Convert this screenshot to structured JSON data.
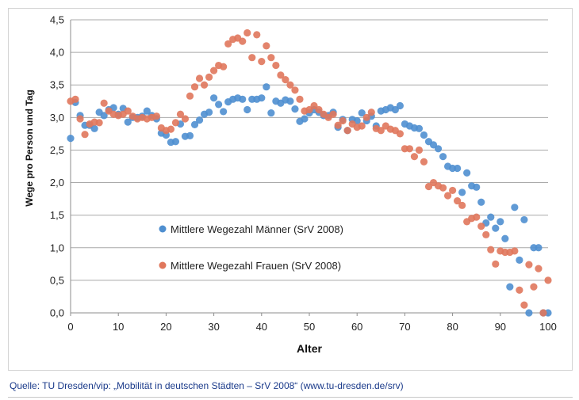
{
  "source": "Quelle: TU Dresden/vip: „Mobilität in deutschen Städten – SrV 2008“ (www.tu-dresden.de/srv)",
  "chart_data": {
    "type": "scatter",
    "xlabel": "Alter",
    "ylabel": "Wege pro Person und Tag",
    "xlim": [
      0,
      100
    ],
    "ylim": [
      0,
      4.5
    ],
    "x_ticks": [
      "0",
      "10",
      "20",
      "30",
      "40",
      "50",
      "60",
      "70",
      "80",
      "90",
      "100"
    ],
    "y_ticks": [
      "0,0",
      "0,5",
      "1,0",
      "1,5",
      "2,0",
      "2,5",
      "3,0",
      "3,5",
      "4,0",
      "4,5"
    ],
    "grid": "horizontal",
    "legend": "center-left",
    "series": [
      {
        "name": "Mittlere Wegezahl Männer (SrV 2008)",
        "color": "#4f8fd0",
        "x": [
          0,
          1,
          2,
          3,
          4,
          5,
          6,
          7,
          8,
          9,
          10,
          11,
          12,
          13,
          14,
          15,
          16,
          17,
          18,
          19,
          20,
          21,
          22,
          23,
          24,
          25,
          26,
          27,
          28,
          29,
          30,
          31,
          32,
          33,
          34,
          35,
          36,
          37,
          38,
          39,
          40,
          41,
          42,
          43,
          44,
          45,
          46,
          47,
          48,
          49,
          50,
          51,
          52,
          53,
          54,
          55,
          56,
          57,
          58,
          59,
          60,
          61,
          62,
          63,
          64,
          65,
          66,
          67,
          68,
          69,
          70,
          71,
          72,
          73,
          74,
          75,
          76,
          77,
          78,
          79,
          80,
          81,
          82,
          83,
          84,
          85,
          86,
          87,
          88,
          89,
          90,
          91,
          92,
          93,
          94,
          95,
          96,
          97,
          98,
          99,
          100
        ],
        "y": [
          2.68,
          3.23,
          3.03,
          2.88,
          2.88,
          2.83,
          3.08,
          3.03,
          3.12,
          3.15,
          3.05,
          3.14,
          2.93,
          3.0,
          3.0,
          3.02,
          3.1,
          3.03,
          2.98,
          2.76,
          2.73,
          2.62,
          2.63,
          2.9,
          2.71,
          2.72,
          2.89,
          2.96,
          3.05,
          3.08,
          3.3,
          3.2,
          3.09,
          3.24,
          3.28,
          3.3,
          3.28,
          3.12,
          3.28,
          3.28,
          3.3,
          3.47,
          3.07,
          3.25,
          3.22,
          3.27,
          3.25,
          3.13,
          2.94,
          2.98,
          3.07,
          3.12,
          3.08,
          3.03,
          3.03,
          3.08,
          2.85,
          2.97,
          2.8,
          2.97,
          2.95,
          3.07,
          2.95,
          3.02,
          2.87,
          3.1,
          3.12,
          3.15,
          3.12,
          3.18,
          2.9,
          2.87,
          2.84,
          2.83,
          2.73,
          2.63,
          2.58,
          2.52,
          2.4,
          2.25,
          2.22,
          2.22,
          1.85,
          2.15,
          1.95,
          1.93,
          1.7,
          1.38,
          1.47,
          1.3,
          1.4,
          1.14,
          0.4,
          1.62,
          0.81,
          1.43,
          0.0,
          1.0,
          1.0,
          0.0,
          0.0
        ]
      },
      {
        "name": "Mittlere Wegezahl Frauen (SrV 2008)",
        "color": "#e0775c",
        "x": [
          0,
          1,
          2,
          3,
          4,
          5,
          6,
          7,
          8,
          9,
          10,
          11,
          12,
          13,
          14,
          15,
          16,
          17,
          18,
          19,
          20,
          21,
          22,
          23,
          24,
          25,
          26,
          27,
          28,
          29,
          30,
          31,
          32,
          33,
          34,
          35,
          36,
          37,
          38,
          39,
          40,
          41,
          42,
          43,
          44,
          45,
          46,
          47,
          48,
          49,
          50,
          51,
          52,
          53,
          54,
          55,
          56,
          57,
          58,
          59,
          60,
          61,
          62,
          63,
          64,
          65,
          66,
          67,
          68,
          69,
          70,
          71,
          72,
          73,
          74,
          75,
          76,
          77,
          78,
          79,
          80,
          81,
          82,
          83,
          84,
          85,
          86,
          87,
          88,
          89,
          90,
          91,
          92,
          93,
          94,
          95,
          96,
          97,
          98,
          99,
          100
        ],
        "y": [
          3.25,
          3.28,
          2.98,
          2.74,
          2.9,
          2.93,
          2.92,
          3.22,
          3.1,
          3.05,
          3.03,
          3.05,
          3.1,
          3.02,
          2.98,
          3.0,
          2.98,
          3.0,
          3.02,
          2.84,
          2.8,
          2.82,
          2.92,
          3.05,
          2.98,
          3.33,
          3.47,
          3.6,
          3.5,
          3.62,
          3.72,
          3.8,
          3.78,
          4.13,
          4.2,
          4.22,
          4.17,
          4.3,
          3.92,
          4.27,
          3.86,
          4.1,
          3.92,
          3.8,
          3.65,
          3.58,
          3.5,
          3.42,
          3.28,
          3.1,
          3.12,
          3.18,
          3.12,
          3.05,
          3.0,
          3.05,
          2.88,
          2.95,
          2.8,
          2.9,
          2.85,
          2.87,
          3.0,
          3.08,
          2.83,
          2.8,
          2.87,
          2.82,
          2.8,
          2.75,
          2.52,
          2.52,
          2.4,
          2.5,
          2.32,
          1.94,
          2.0,
          1.95,
          1.92,
          1.8,
          1.88,
          1.72,
          1.65,
          1.4,
          1.45,
          1.47,
          1.33,
          1.2,
          0.97,
          0.75,
          0.95,
          0.93,
          0.93,
          0.95,
          0.35,
          0.12,
          0.74,
          0.4,
          0.68,
          0.0,
          0.5
        ]
      }
    ]
  }
}
